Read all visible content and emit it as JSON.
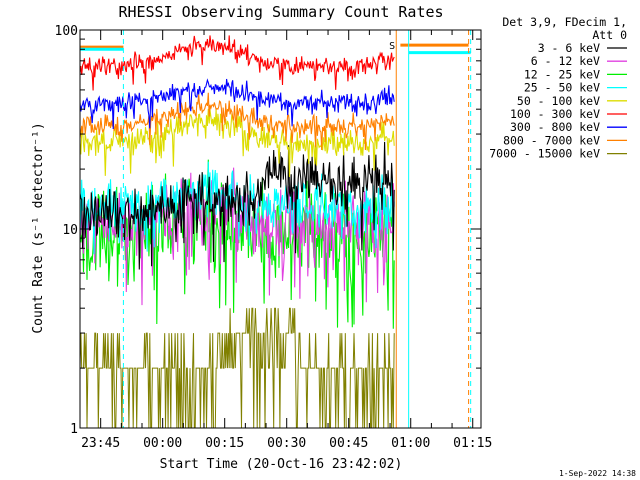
{
  "chart_data": {
    "type": "line",
    "title": "RHESSI Observing Summary Count Rates",
    "xlabel": "Start Time (20-Oct-16 23:42:02)",
    "ylabel": "Count Rate (s⁻¹ detector⁻¹)",
    "y_scale": "log",
    "ylim": [
      1,
      100
    ],
    "y_tick_labels": [
      "1",
      "10",
      "100"
    ],
    "x_range_minutes": [
      -2,
      95
    ],
    "x_ticks": [
      {
        "label": "23:45",
        "minute": 3
      },
      {
        "label": "00:00",
        "minute": 18
      },
      {
        "label": "00:15",
        "minute": 33
      },
      {
        "label": "00:30",
        "minute": 48
      },
      {
        "label": "00:45",
        "minute": 63
      },
      {
        "label": "01:00",
        "minute": 78
      },
      {
        "label": "01:15",
        "minute": 93
      }
    ],
    "legend_header": [
      "Det 3,9, FDecim 1,",
      "Att 0"
    ],
    "legend_position": "right",
    "timestamp": "1-Sep-2022 14:38",
    "s_marker": "S",
    "data_end_minute": 74,
    "series": [
      {
        "name": "3 - 6 keV",
        "color": "#000000",
        "base": 12,
        "bump": 1.18,
        "noise": 0.1,
        "knee": 1.55
      },
      {
        "name": "6 - 12 keV",
        "color": "#e040e0",
        "base": 10.5,
        "bump": 1.22,
        "noise": 0.12
      },
      {
        "name": "12 - 25 keV",
        "color": "#00ee00",
        "base": 9.5,
        "bump": 1.3,
        "noise": 0.16
      },
      {
        "name": "25 - 50 keV",
        "color": "#00ffff",
        "base": 13,
        "bump": 1.22,
        "noise": 0.09
      },
      {
        "name": "50 - 100 keV",
        "color": "#dddd00",
        "base": 27,
        "bump": 1.28,
        "noise": 0.05
      },
      {
        "name": "100 - 300 keV",
        "color": "#ff0000",
        "base": 66,
        "bump": 1.28,
        "noise": 0.035
      },
      {
        "name": "300 - 800 keV",
        "color": "#0000ff",
        "base": 43,
        "bump": 1.22,
        "noise": 0.035
      },
      {
        "name": "800 - 7000 keV",
        "color": "#ff8000",
        "base": 33,
        "bump": 1.25,
        "noise": 0.04
      },
      {
        "name": "7000 - 15000 keV",
        "color": "#808000",
        "base": 2,
        "bump": 1.0,
        "noise": 0.0,
        "discrete": true
      }
    ],
    "vertical_lines": [
      {
        "minute": -2,
        "color": "#00ffff",
        "dashed": false
      },
      {
        "minute": 8.5,
        "color": "#00ffff",
        "dashed": true
      },
      {
        "minute": 74.5,
        "color": "#ff8000",
        "dashed": false
      },
      {
        "minute": 77.5,
        "color": "#00ffff",
        "dashed": false
      },
      {
        "minute": 92,
        "color": "#ff8000",
        "dashed": true
      },
      {
        "minute": 92.5,
        "color": "#00ffff",
        "dashed": true
      }
    ],
    "horizontal_segments": [
      {
        "from": -2,
        "to": 8.5,
        "value": 82,
        "color": "#ff8000"
      },
      {
        "from": -2,
        "to": 8.5,
        "value": 80,
        "color": "#00ffff"
      },
      {
        "from": 75.5,
        "to": 92,
        "value": 84,
        "color": "#ff8000"
      },
      {
        "from": 77.5,
        "to": 92.5,
        "value": 77,
        "color": "#00ffff"
      }
    ]
  }
}
